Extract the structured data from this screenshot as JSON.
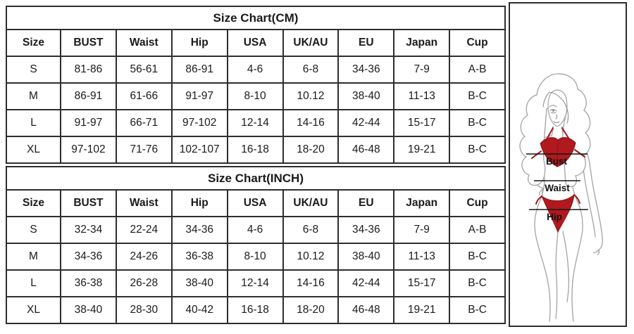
{
  "cm_table": {
    "title": "Size Chart(CM)",
    "headers": [
      "Size",
      "BUST",
      "Waist",
      "Hip",
      "USA",
      "UK/AU",
      "EU",
      "Japan",
      "Cup"
    ],
    "rows": [
      [
        "S",
        "81-86",
        "56-61",
        "86-91",
        "4-6",
        "6-8",
        "34-36",
        "7-9",
        "A-B"
      ],
      [
        "M",
        "86-91",
        "61-66",
        "91-97",
        "8-10",
        "10.12",
        "38-40",
        "11-13",
        "B-C"
      ],
      [
        "L",
        "91-97",
        "66-71",
        "97-102",
        "12-14",
        "14-16",
        "42-44",
        "15-17",
        "B-C"
      ],
      [
        "XL",
        "97-102",
        "71-76",
        "102-107",
        "16-18",
        "18-20",
        "46-48",
        "19-21",
        "B-C"
      ]
    ]
  },
  "inch_table": {
    "title": "Size Chart(INCH)",
    "headers": [
      "Size",
      "BUST",
      "Waist",
      "Hip",
      "USA",
      "UK/AU",
      "EU",
      "Japan",
      "Cup"
    ],
    "rows": [
      [
        "S",
        "32-34",
        "22-24",
        "34-36",
        "4-6",
        "6-8",
        "34-36",
        "7-9",
        "A-B"
      ],
      [
        "M",
        "34-36",
        "24-26",
        "36-38",
        "8-10",
        "10.12",
        "38-40",
        "11-13",
        "B-C"
      ],
      [
        "L",
        "36-38",
        "26-28",
        "38-40",
        "12-14",
        "14-16",
        "42-44",
        "15-17",
        "B-C"
      ],
      [
        "XL",
        "38-40",
        "28-30",
        "40-42",
        "16-18",
        "18-20",
        "46-48",
        "19-21",
        "B-C"
      ]
    ]
  },
  "figure": {
    "bust_label": "Bust",
    "waist_label": "Waist",
    "hip_label": "Hip",
    "colors": {
      "bikini_red": "#b0191e",
      "bikini_red_dark": "#8e1216",
      "body_outline": "#a3a3a3",
      "measure_line": "#151515",
      "table_border": "#2e2e2e"
    }
  }
}
